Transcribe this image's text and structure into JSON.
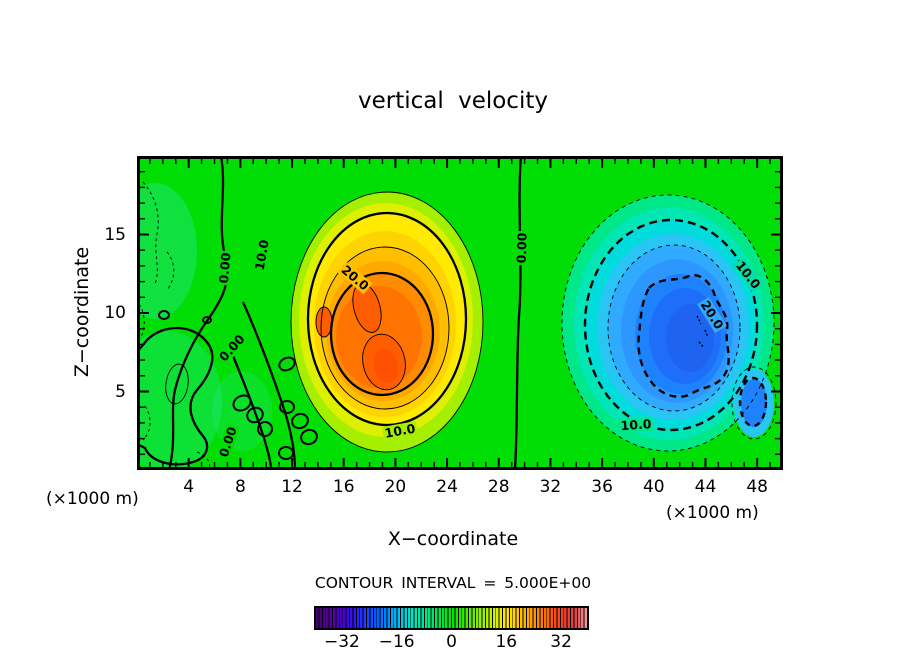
{
  "header": {
    "title": "vertical velocity"
  },
  "axes": {
    "x_label": "X−coordinate",
    "y_label": "Z−coordinate",
    "x_unit_left": "(×1000 m)",
    "x_unit_right": "(×1000 m)",
    "x_ticks": [
      "4",
      "8",
      "12",
      "16",
      "20",
      "24",
      "28",
      "32",
      "36",
      "40",
      "44",
      "48"
    ],
    "y_ticks": [
      "5",
      "10",
      "15"
    ],
    "x_range": [
      0,
      50
    ],
    "y_range": [
      0,
      20
    ]
  },
  "footer": {
    "contour_interval": "CONTOUR INTERVAL = 5.000E+00"
  },
  "colorbar": {
    "ticks": [
      "−32",
      "−16",
      "0",
      "16",
      "32"
    ]
  },
  "chart_data": {
    "type": "filled_contour",
    "title": "vertical velocity",
    "xlabel": "X-coordinate (×1000 m)",
    "ylabel": "Z-coordinate (×1000 m)",
    "x_range": [
      0,
      50
    ],
    "y_range": [
      0,
      20
    ],
    "x_tick_values": [
      4,
      8,
      12,
      16,
      20,
      24,
      28,
      32,
      36,
      40,
      44,
      48
    ],
    "y_tick_values": [
      5,
      10,
      15
    ],
    "contour_interval": 5.0,
    "contour_interval_label": "CONTOUR INTERVAL = 5.000E+00",
    "line_styles": {
      "positive_contours": "solid",
      "negative_contours": "dashed",
      "thick_levels": [
        0,
        10,
        20,
        -10,
        -20
      ],
      "thin_levels": [
        5,
        15,
        25,
        -5,
        -15,
        -25
      ]
    },
    "contour_labels": [
      {
        "text": "0.00",
        "value": 0,
        "x": 6.8,
        "z": 12.9
      },
      {
        "text": "0.00",
        "value": 0,
        "x": 7.4,
        "z": 7.8
      },
      {
        "text": "0.00",
        "value": 0,
        "x": 7.0,
        "z": 1.8
      },
      {
        "text": "10.0",
        "value": 10,
        "x": 9.7,
        "z": 13.7
      },
      {
        "text": "20.0",
        "value": 20,
        "x": 16.9,
        "z": 12.2
      },
      {
        "text": "0.00",
        "value": 0,
        "x": 29.8,
        "z": 14.1
      },
      {
        "text": "10.0",
        "value": -10,
        "x": 47.3,
        "z": 12.4
      },
      {
        "text": "20.0",
        "value": -20,
        "x": 44.5,
        "z": 9.9
      },
      {
        "text": "10.0",
        "value": 10,
        "x": 20.4,
        "z": 2.5
      },
      {
        "text": "10.0",
        "value": -10,
        "x": 38.6,
        "z": 2.9
      }
    ],
    "features": [
      {
        "name": "updraft core",
        "sign": "positive",
        "center_x": 19,
        "center_z": 8.2,
        "peak_value": 27,
        "closed_contours": [
          5,
          10,
          15,
          20,
          25
        ]
      },
      {
        "name": "downdraft core",
        "sign": "negative",
        "center_x": 41.5,
        "center_z": 8.5,
        "peak_value": -27,
        "closed_contours": [
          -5,
          -10,
          -15,
          -20,
          -25
        ]
      }
    ],
    "colorbar": {
      "min": -40,
      "max": 40,
      "tick_values": [
        -32,
        -16,
        0,
        16,
        32
      ],
      "left_color": "#46007D",
      "center_color": "#00E30A",
      "right_color": "#FF9C9C"
    },
    "background_color": "#00DE05",
    "grid": false,
    "legend": false
  }
}
